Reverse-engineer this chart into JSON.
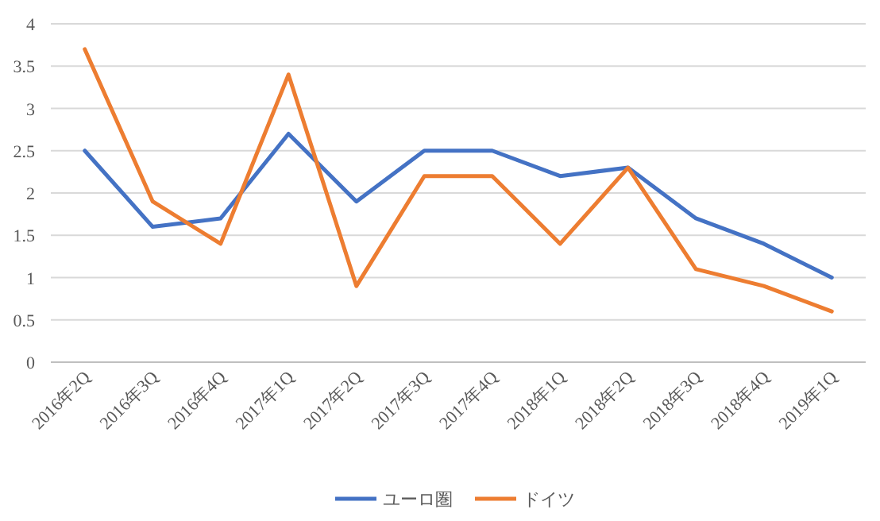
{
  "chart_data": {
    "type": "line",
    "categories": [
      "2016年2Q",
      "2016年3Q",
      "2016年4Q",
      "2017年1Q",
      "2017年2Q",
      "2017年3Q",
      "2017年4Q",
      "2018年1Q",
      "2018年2Q",
      "2018年3Q",
      "2018年4Q",
      "2019年1Q"
    ],
    "series": [
      {
        "name": "ユーロ圏",
        "color": "#4472c4",
        "values": [
          2.5,
          1.6,
          1.7,
          2.7,
          1.9,
          2.5,
          2.5,
          2.2,
          2.3,
          1.7,
          1.4,
          1.0
        ]
      },
      {
        "name": "ドイツ",
        "color": "#ed7d31",
        "values": [
          3.7,
          1.9,
          1.4,
          3.4,
          0.9,
          2.2,
          2.2,
          1.4,
          2.3,
          1.1,
          0.9,
          0.6
        ]
      }
    ],
    "ylim": [
      0,
      4
    ],
    "yticks": [
      0,
      0.5,
      1,
      1.5,
      2,
      2.5,
      3,
      3.5,
      4
    ],
    "grid": "y",
    "legend": "bottom",
    "marker": "none",
    "line_style": "solid"
  }
}
